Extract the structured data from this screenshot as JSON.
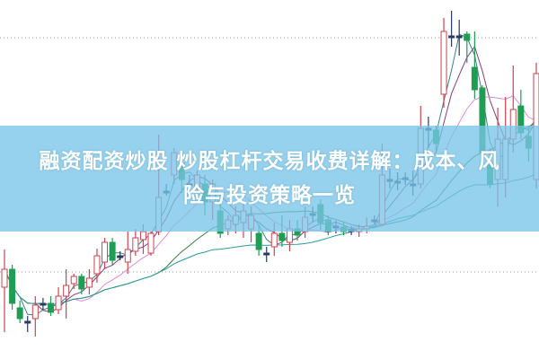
{
  "title": {
    "line1": "融资配资炒股 炒股杠杆交易收费详解：成本、风",
    "line2": "险与投资策略一览"
  },
  "colors": {
    "up": "#d2424e",
    "down": "#1e9e52",
    "banner": "#78c4e8",
    "ma_lines": [
      "#3c7f87",
      "#8a3a78",
      "#e08ad6",
      "#2f7d3a",
      "#2a9a9a"
    ]
  },
  "chart_data": {
    "type": "candlestick",
    "title": "",
    "xlabel": "",
    "ylabel": "",
    "ylim": [
      0,
      20
    ],
    "grid": false,
    "reference_lines": [
      17.9,
      4.85
    ],
    "ohlc": [
      [
        4.0,
        5.0,
        6.1,
        1.5
      ],
      [
        5.0,
        3.1,
        5.25,
        2.75
      ],
      [
        2.85,
        2.25,
        3.25,
        2.0
      ],
      [
        2.1,
        2.1,
        2.4,
        1.5
      ],
      [
        2.25,
        3.0,
        3.5,
        1.25
      ],
      [
        3.1,
        3.1,
        3.4,
        2.75
      ],
      [
        3.1,
        2.6,
        3.5,
        2.4
      ],
      [
        2.75,
        3.5,
        4.0,
        2.5
      ],
      [
        3.5,
        4.1,
        5.0,
        2.25
      ],
      [
        4.2,
        4.6,
        4.75,
        3.9
      ],
      [
        4.6,
        3.9,
        4.75,
        3.6
      ],
      [
        4.0,
        4.5,
        5.0,
        3.6
      ],
      [
        4.75,
        5.75,
        6.15,
        4.25
      ],
      [
        5.4,
        6.5,
        6.75,
        5.0
      ],
      [
        6.5,
        5.5,
        6.75,
        5.25
      ],
      [
        5.75,
        5.75,
        6.0,
        5.5
      ],
      [
        5.4,
        6.1,
        7.1,
        4.75
      ],
      [
        6.0,
        6.75,
        7.25,
        5.75
      ],
      [
        6.65,
        7.1,
        7.5,
        5.85
      ],
      [
        5.9,
        7.0,
        7.1,
        5.75
      ],
      [
        7.1,
        9.0,
        12.5,
        6.9
      ],
      [
        9.35,
        9.35,
        9.75,
        9.1
      ],
      [
        10.25,
        11.5,
        11.75,
        9.75
      ],
      [
        10.9,
        10.0,
        11.25,
        9.25
      ],
      [
        9.75,
        9.75,
        10.25,
        9.25
      ],
      [
        9.5,
        10.25,
        10.5,
        8.75
      ],
      [
        9.75,
        8.75,
        10.25,
        8.0
      ],
      [
        8.75,
        9.75,
        10.0,
        7.75
      ],
      [
        8.25,
        7.0,
        8.75,
        6.75
      ],
      [
        7.25,
        7.75,
        8.0,
        6.9
      ],
      [
        7.5,
        8.0,
        8.5,
        7.0
      ],
      [
        7.6,
        8.25,
        8.75,
        6.75
      ],
      [
        7.25,
        8.0,
        8.5,
        6.5
      ],
      [
        7.0,
        6.1,
        7.5,
        5.75
      ],
      [
        5.9,
        5.9,
        6.25,
        5.4
      ],
      [
        6.25,
        7.0,
        7.6,
        5.75
      ],
      [
        7.0,
        6.6,
        8.0,
        6.25
      ],
      [
        6.5,
        7.25,
        7.75,
        6.0
      ],
      [
        7.25,
        6.9,
        7.75,
        6.6
      ],
      [
        7.1,
        7.9,
        8.5,
        6.75
      ],
      [
        8.1,
        8.1,
        8.5,
        7.6
      ],
      [
        8.6,
        7.6,
        8.9,
        7.2
      ],
      [
        7.75,
        7.1,
        8.0,
        6.9
      ],
      [
        7.4,
        7.4,
        7.7,
        7.0
      ],
      [
        7.35,
        7.1,
        7.6,
        6.9
      ],
      [
        7.2,
        7.2,
        7.4,
        6.9
      ],
      [
        7.1,
        7.25,
        7.5,
        6.8
      ],
      [
        7.25,
        7.4,
        7.9,
        7.0
      ],
      [
        7.75,
        7.75,
        8.0,
        7.5
      ],
      [
        7.5,
        10.25,
        12.0,
        7.4
      ],
      [
        10.0,
        10.0,
        10.6,
        9.5
      ],
      [
        9.9,
        9.9,
        10.4,
        9.4
      ],
      [
        10.1,
        10.1,
        10.4,
        9.7
      ],
      [
        9.75,
        9.75,
        10.5,
        9.1
      ],
      [
        9.75,
        12.85,
        14.1,
        9.5
      ],
      [
        12.85,
        12.85,
        13.5,
        11.75
      ],
      [
        12.75,
        12.0,
        13.0,
        11.5
      ],
      [
        14.75,
        18.25,
        19.0,
        14.0
      ],
      [
        18.0,
        18.0,
        19.4,
        17.4
      ],
      [
        18.0,
        18.0,
        18.9,
        16.9
      ],
      [
        18.1,
        17.75,
        18.25,
        16.5
      ],
      [
        16.25,
        15.0,
        18.25,
        14.5
      ],
      [
        15.1,
        11.5,
        15.25,
        11.25
      ],
      [
        10.9,
        9.75,
        11.75,
        9.5
      ],
      [
        10.0,
        12.25,
        14.0,
        8.5
      ],
      [
        10.0,
        12.25,
        14.6,
        9.0
      ],
      [
        12.25,
        13.9,
        16.35,
        11.5
      ],
      [
        14.1,
        12.6,
        15.0,
        12.25
      ],
      [
        12.4,
        11.75,
        13.0,
        11.0
      ],
      [
        10.0,
        15.9,
        16.5,
        9.5
      ]
    ]
  }
}
